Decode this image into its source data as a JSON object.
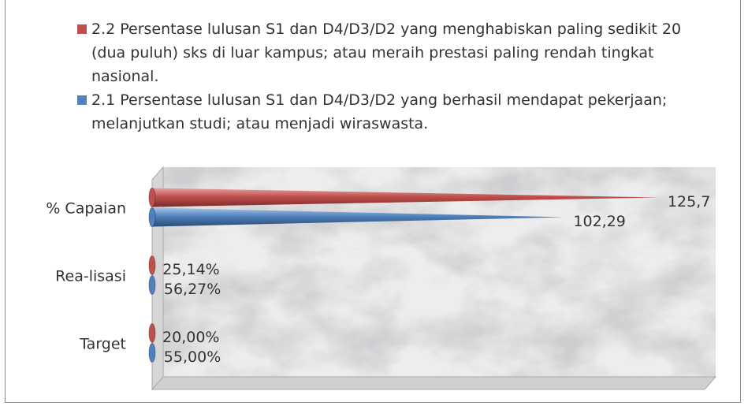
{
  "chart_data": {
    "type": "bar",
    "orientation": "horizontal",
    "categories": [
      "% Capaian",
      "Rea-lisasi",
      "Target"
    ],
    "series": [
      {
        "name": "2.2 Persentase lulusan S1 dan D4/D3/D2 yang menghabiskan paling sedikit 20 (dua puluh) sks di luar kampus; atau meraih prestasi paling rendah tingkat nasional.",
        "color": "#c0504d",
        "values": [
          125.7,
          0.2514,
          0.2
        ],
        "value_labels": [
          "125,7",
          "25,14%",
          "20,00%"
        ]
      },
      {
        "name": "2.1 Persentase lulusan S1 dan D4/D3/D2 yang berhasil mendapat pekerjaan; melanjutkan studi; atau menjadi wiraswasta.",
        "color": "#4f81bd",
        "values": [
          102.29,
          0.5627,
          0.55
        ],
        "value_labels": [
          "102,29",
          "56,27%",
          "55,00%"
        ]
      }
    ],
    "xlim": [
      0,
      140
    ],
    "legend": "top"
  }
}
